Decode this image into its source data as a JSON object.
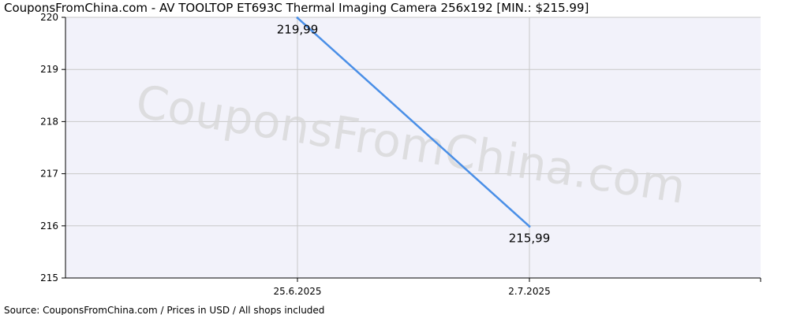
{
  "chart_data": {
    "type": "line",
    "title": "CouponsFromChina.com -  AV TOOLTOP ET693C Thermal Imaging Camera 256x192 [MIN.: $215.99]",
    "x": [
      "25.6.2025",
      "2.7.2025"
    ],
    "series": [
      {
        "values": [
          219.99,
          215.99
        ],
        "labels": [
          "219,99",
          "215,99"
        ],
        "color": "#4a8fe7"
      }
    ],
    "yticks": [
      215,
      216,
      217,
      218,
      219,
      220
    ],
    "ylim": [
      215,
      220
    ],
    "grid": true,
    "legend": "none"
  },
  "watermark": "CouponsFromChina.com",
  "source": "Source:  CouponsFromChina.com / Prices in USD / All shops included"
}
